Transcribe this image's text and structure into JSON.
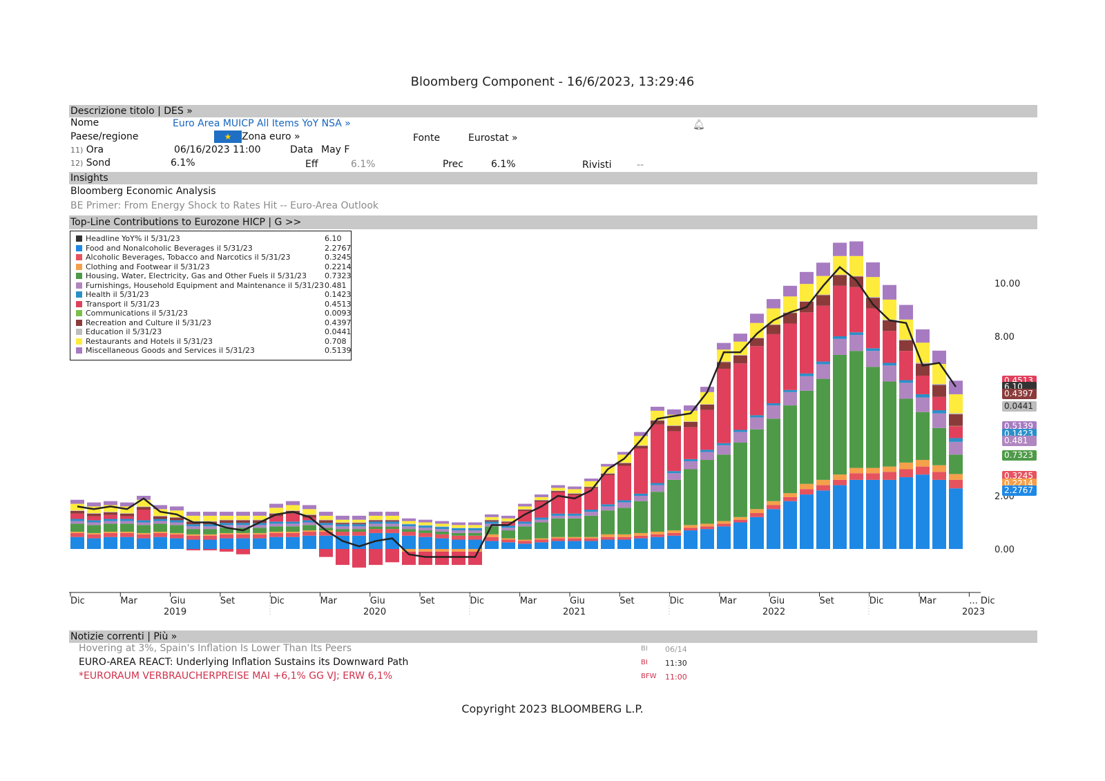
{
  "window_title": "Bloomberg Component - 16/6/2023, 13:29:46",
  "des_bar": "Descrizione titolo | DES »",
  "fields": {
    "nome_label": "Nome",
    "nome_value": "Euro Area MUICP All Items YoY NSA »",
    "paese_label": "Paese/regione",
    "paese_value": "Zona euro »",
    "fonte_label": "Fonte",
    "fonte_value": "Eurostat »",
    "ora_num": "11)",
    "ora_label": "Ora",
    "ora_value": "06/16/2023 11:00",
    "data_label": "Data",
    "data_value": "May F",
    "sond_num": "12)",
    "sond_label": "Sond",
    "sond_value": "6.1%",
    "eff_label": "Eff",
    "eff_value": "6.1%",
    "prec_label": "Prec",
    "prec_value": "6.1%",
    "rivisti_label": "Rivisti",
    "rivisti_value": "--"
  },
  "insights_bar": "Insights",
  "insights": {
    "heading": "Bloomberg Economic Analysis",
    "link": "BE Primer: From Energy Shock to Rates Hit -- Euro-Area Outlook"
  },
  "chart_bar": "Top-Line Contributions to Eurozone HICP   | G >>",
  "chart_data": {
    "type": "bar",
    "stacked": true,
    "ylim": [
      -1,
      11.5
    ],
    "y_ticks": [
      "10.00",
      "8.00",
      "2.00",
      "0.00"
    ],
    "y_tick_values": [
      10,
      8,
      2,
      0
    ],
    "x_tick_labels": [
      "Dic",
      "Mar",
      "Giu",
      "Set",
      "Dic",
      "Mar",
      "Giu",
      "Set",
      "Dic",
      "Mar",
      "Giu",
      "Set",
      "Dic",
      "Mar",
      "Giu",
      "Set",
      "Dic",
      "Mar",
      "... Dic"
    ],
    "x_year_labels": [
      "2019",
      "2020",
      "2021",
      "2022",
      "2023"
    ],
    "legend": [
      {
        "name": "Headline YoY% il 5/31/23",
        "value": "6.10",
        "color": "#333333"
      },
      {
        "name": "Food and Nonalcoholic Beverages il 5/31/23",
        "value": "2.2767",
        "color": "#1e88e5"
      },
      {
        "name": "Alcoholic Beverages, Tobacco and Narcotics il 5/31/23",
        "value": "0.3245",
        "color": "#e5535f"
      },
      {
        "name": "Clothing and Footwear il 5/31/23",
        "value": "0.2214",
        "color": "#f5a04a"
      },
      {
        "name": "Housing, Water, Electricity, Gas and Other Fuels il 5/31/23",
        "value": "0.7323",
        "color": "#4e9a48"
      },
      {
        "name": "Furnishings, Household Equipment and Maintenance il 5/31/23",
        "value": "0.481",
        "color": "#b086c0"
      },
      {
        "name": "Health il 5/31/23",
        "value": "0.1423",
        "color": "#2b8fc9"
      },
      {
        "name": "Transport il 5/31/23",
        "value": "0.4513",
        "color": "#e0405c"
      },
      {
        "name": "Communications il 5/31/23",
        "value": "0.0093",
        "color": "#7cc04a"
      },
      {
        "name": "Recreation and Culture il 5/31/23",
        "value": "0.4397",
        "color": "#8b3a3a"
      },
      {
        "name": "Education il 5/31/23",
        "value": "0.0441",
        "color": "#bdbdbd"
      },
      {
        "name": "Restaurants and Hotels il 5/31/23",
        "value": "0.708",
        "color": "#ffeb3b"
      },
      {
        "name": "Miscellaneous Goods and Services il 5/31/23",
        "value": "0.5139",
        "color": "#a77bc1"
      }
    ],
    "headline": [
      1.6,
      1.5,
      1.6,
      1.5,
      1.9,
      1.4,
      1.3,
      1.0,
      1.0,
      0.8,
      0.7,
      1.0,
      1.3,
      1.4,
      1.2,
      0.7,
      0.3,
      0.1,
      0.3,
      0.4,
      -0.2,
      -0.3,
      -0.3,
      -0.3,
      -0.3,
      0.9,
      0.9,
      1.3,
      1.6,
      2.0,
      1.9,
      2.2,
      3.0,
      3.4,
      4.1,
      4.9,
      5.0,
      5.1,
      5.9,
      7.4,
      7.4,
      8.1,
      8.6,
      8.9,
      9.1,
      9.9,
      10.6,
      10.1,
      9.2,
      8.6,
      8.5,
      6.9,
      7.0,
      6.1
    ],
    "series": [
      {
        "name": "Food",
        "values": [
          0.45,
          0.4,
          0.45,
          0.45,
          0.4,
          0.45,
          0.4,
          0.35,
          0.35,
          0.4,
          0.4,
          0.4,
          0.45,
          0.45,
          0.5,
          0.5,
          0.5,
          0.5,
          0.6,
          0.6,
          0.5,
          0.45,
          0.4,
          0.35,
          0.35,
          0.3,
          0.25,
          0.2,
          0.25,
          0.3,
          0.3,
          0.3,
          0.35,
          0.35,
          0.4,
          0.45,
          0.5,
          0.7,
          0.75,
          0.85,
          1.0,
          1.2,
          1.5,
          1.8,
          2.05,
          2.2,
          2.4,
          2.6,
          2.6,
          2.6,
          2.7,
          2.8,
          2.6,
          2.28
        ]
      },
      {
        "name": "Alcohol",
        "values": [
          0.15,
          0.15,
          0.15,
          0.15,
          0.15,
          0.15,
          0.15,
          0.15,
          0.15,
          0.15,
          0.15,
          0.15,
          0.15,
          0.15,
          0.15,
          0.15,
          0.15,
          0.15,
          0.15,
          0.15,
          0.15,
          0.15,
          0.15,
          0.15,
          0.15,
          0.15,
          0.1,
          0.1,
          0.1,
          0.1,
          0.1,
          0.1,
          0.1,
          0.1,
          0.1,
          0.1,
          0.1,
          0.1,
          0.1,
          0.1,
          0.1,
          0.15,
          0.15,
          0.15,
          0.2,
          0.2,
          0.2,
          0.25,
          0.25,
          0.3,
          0.3,
          0.3,
          0.3,
          0.32
        ]
      },
      {
        "name": "Clothing",
        "values": [
          0.05,
          0.05,
          0.05,
          0.05,
          0.05,
          0.05,
          0.05,
          0.05,
          0.05,
          0.05,
          0.05,
          0.05,
          0.05,
          0.05,
          0.05,
          0.05,
          0.0,
          0.0,
          0.0,
          0.0,
          -0.1,
          -0.1,
          -0.1,
          -0.1,
          -0.1,
          0.1,
          0.05,
          0.05,
          0.05,
          0.05,
          0.05,
          0.05,
          0.1,
          0.1,
          0.1,
          0.1,
          0.1,
          0.1,
          0.1,
          0.1,
          0.1,
          0.15,
          0.15,
          0.15,
          0.2,
          0.2,
          0.2,
          0.2,
          0.2,
          0.2,
          0.25,
          0.25,
          0.25,
          0.22
        ]
      },
      {
        "name": "Housing",
        "values": [
          0.3,
          0.3,
          0.3,
          0.3,
          0.3,
          0.3,
          0.3,
          0.2,
          0.2,
          0.2,
          0.2,
          0.2,
          0.2,
          0.2,
          0.2,
          0.1,
          0.1,
          0.1,
          0.1,
          0.1,
          0.1,
          0.1,
          0.1,
          0.1,
          0.1,
          0.3,
          0.3,
          0.5,
          0.6,
          0.7,
          0.7,
          0.8,
          0.9,
          1.0,
          1.2,
          1.5,
          1.9,
          2.1,
          2.4,
          2.5,
          2.8,
          3.0,
          3.1,
          3.3,
          3.5,
          3.8,
          4.5,
          4.4,
          3.8,
          3.2,
          2.4,
          1.8,
          1.4,
          0.73
        ]
      },
      {
        "name": "Furnishings",
        "values": [
          0.1,
          0.1,
          0.1,
          0.1,
          0.1,
          0.1,
          0.1,
          0.1,
          0.1,
          0.1,
          0.1,
          0.1,
          0.1,
          0.1,
          0.1,
          0.1,
          0.1,
          0.1,
          0.1,
          0.1,
          0.1,
          0.1,
          0.1,
          0.1,
          0.1,
          0.1,
          0.1,
          0.1,
          0.1,
          0.1,
          0.1,
          0.15,
          0.15,
          0.2,
          0.2,
          0.25,
          0.25,
          0.3,
          0.3,
          0.35,
          0.4,
          0.45,
          0.5,
          0.5,
          0.55,
          0.55,
          0.6,
          0.6,
          0.6,
          0.6,
          0.6,
          0.55,
          0.55,
          0.48
        ]
      },
      {
        "name": "Health",
        "values": [
          0.08,
          0.08,
          0.08,
          0.08,
          0.08,
          0.08,
          0.08,
          0.08,
          0.08,
          0.08,
          0.08,
          0.08,
          0.08,
          0.08,
          0.08,
          0.08,
          0.08,
          0.08,
          0.08,
          0.08,
          0.08,
          0.08,
          0.08,
          0.08,
          0.08,
          0.08,
          0.08,
          0.08,
          0.08,
          0.08,
          0.08,
          0.08,
          0.08,
          0.08,
          0.08,
          0.08,
          0.08,
          0.08,
          0.08,
          0.08,
          0.08,
          0.08,
          0.08,
          0.08,
          0.1,
          0.1,
          0.1,
          0.1,
          0.1,
          0.1,
          0.1,
          0.12,
          0.12,
          0.14
        ]
      },
      {
        "name": "Transport",
        "values": [
          0.2,
          0.15,
          0.15,
          0.1,
          0.4,
          0.0,
          0.0,
          -0.05,
          -0.05,
          -0.1,
          -0.2,
          0.0,
          0.2,
          0.3,
          0.1,
          -0.3,
          -0.6,
          -0.7,
          -0.6,
          -0.5,
          -0.5,
          -0.5,
          -0.5,
          -0.5,
          -0.5,
          0.0,
          0.1,
          0.4,
          0.6,
          0.8,
          0.7,
          0.8,
          1.1,
          1.3,
          1.7,
          2.2,
          1.5,
          1.2,
          1.5,
          2.8,
          2.5,
          2.6,
          2.6,
          2.5,
          2.3,
          2.1,
          1.9,
          1.7,
          1.5,
          1.2,
          1.1,
          0.7,
          0.5,
          0.45
        ]
      },
      {
        "name": "Communications",
        "values": [
          0.0,
          0.0,
          0.0,
          0.0,
          0.0,
          0.0,
          0.0,
          0.0,
          0.0,
          0.0,
          0.0,
          0.0,
          0.0,
          0.0,
          0.0,
          0.0,
          0.0,
          0.0,
          0.0,
          0.0,
          0.0,
          0.0,
          0.0,
          0.0,
          0.0,
          0.0,
          0.0,
          0.0,
          0.0,
          0.0,
          0.0,
          0.0,
          0.0,
          0.0,
          0.0,
          0.0,
          0.0,
          0.0,
          0.0,
          0.0,
          0.0,
          0.0,
          0.0,
          0.0,
          0.0,
          0.0,
          0.0,
          0.0,
          0.0,
          0.0,
          0.0,
          0.0,
          0.0,
          0.01
        ]
      },
      {
        "name": "Recreation",
        "values": [
          0.1,
          0.1,
          0.1,
          0.1,
          0.1,
          0.1,
          0.1,
          0.1,
          0.1,
          0.1,
          0.1,
          0.1,
          0.1,
          0.1,
          0.1,
          0.1,
          0.05,
          0.05,
          0.05,
          0.05,
          0.0,
          0.0,
          0.0,
          0.0,
          0.0,
          0.05,
          0.05,
          0.05,
          0.05,
          0.05,
          0.05,
          0.05,
          0.05,
          0.1,
          0.1,
          0.15,
          0.2,
          0.2,
          0.2,
          0.25,
          0.3,
          0.3,
          0.35,
          0.4,
          0.4,
          0.4,
          0.4,
          0.4,
          0.4,
          0.4,
          0.4,
          0.45,
          0.45,
          0.44
        ]
      },
      {
        "name": "Education",
        "values": [
          0.02,
          0.02,
          0.02,
          0.02,
          0.02,
          0.02,
          0.02,
          0.02,
          0.02,
          0.02,
          0.02,
          0.02,
          0.02,
          0.02,
          0.02,
          0.02,
          0.02,
          0.02,
          0.02,
          0.02,
          0.02,
          0.02,
          0.02,
          0.02,
          0.02,
          0.02,
          0.02,
          0.02,
          0.02,
          0.02,
          0.02,
          0.02,
          0.02,
          0.02,
          0.02,
          0.02,
          0.02,
          0.02,
          0.02,
          0.02,
          0.02,
          0.02,
          0.02,
          0.02,
          0.02,
          0.02,
          0.02,
          0.02,
          0.03,
          0.03,
          0.03,
          0.04,
          0.04,
          0.04
        ]
      },
      {
        "name": "Restaurants",
        "values": [
          0.25,
          0.25,
          0.25,
          0.25,
          0.25,
          0.25,
          0.25,
          0.2,
          0.2,
          0.15,
          0.15,
          0.15,
          0.2,
          0.2,
          0.2,
          0.15,
          0.1,
          0.1,
          0.15,
          0.15,
          0.1,
          0.1,
          0.1,
          0.1,
          0.1,
          0.1,
          0.1,
          0.1,
          0.1,
          0.1,
          0.15,
          0.2,
          0.25,
          0.3,
          0.35,
          0.35,
          0.4,
          0.4,
          0.45,
          0.45,
          0.5,
          0.55,
          0.6,
          0.6,
          0.65,
          0.7,
          0.7,
          0.75,
          0.75,
          0.75,
          0.75,
          0.75,
          0.75,
          0.71
        ]
      },
      {
        "name": "Misc",
        "values": [
          0.15,
          0.15,
          0.15,
          0.15,
          0.15,
          0.15,
          0.15,
          0.15,
          0.15,
          0.15,
          0.15,
          0.15,
          0.15,
          0.15,
          0.15,
          0.15,
          0.15,
          0.15,
          0.15,
          0.15,
          0.1,
          0.1,
          0.1,
          0.1,
          0.1,
          0.1,
          0.1,
          0.1,
          0.1,
          0.1,
          0.1,
          0.1,
          0.1,
          0.1,
          0.15,
          0.15,
          0.2,
          0.2,
          0.2,
          0.25,
          0.3,
          0.35,
          0.35,
          0.4,
          0.45,
          0.5,
          0.5,
          0.55,
          0.55,
          0.55,
          0.55,
          0.5,
          0.5,
          0.51
        ]
      }
    ],
    "right_tags": [
      {
        "label": "0.4513",
        "color": "#e0405c"
      },
      {
        "label": "6.10",
        "color": "#333333"
      },
      {
        "label": "0.4397",
        "color": "#8b3a3a"
      },
      {
        "label": "0.0441",
        "color": "#bdbdbd"
      },
      {
        "label": "0.5139",
        "color": "#a77bc1"
      },
      {
        "label": "0.1423",
        "color": "#2b8fc9"
      },
      {
        "label": "0.481",
        "color": "#b086c0"
      },
      {
        "label": "0.7323",
        "color": "#4e9a48"
      },
      {
        "label": "0.3245",
        "color": "#e5535f"
      },
      {
        "label": "0.2214",
        "color": "#f5a04a"
      },
      {
        "label": "2.2767",
        "color": "#1e88e5"
      }
    ]
  },
  "news_bar": "Notizie correnti | Più »",
  "news": [
    {
      "headline": "Hovering at 3%, Spain's Inflation Is Lower Than Its Peers",
      "source": "BI",
      "time": "06/14"
    },
    {
      "headline": "EURO-AREA REACT: Underlying Inflation Sustains its Downward Path",
      "source": "BI",
      "time": "11:30"
    },
    {
      "headline": "*EURORAUM VERBRAUCHERPREISE MAI +6,1% GG VJ; ERW 6,1%",
      "source": "BFW",
      "time": "11:00"
    }
  ],
  "copyright": "Copyright 2023 BLOOMBERG L.P."
}
